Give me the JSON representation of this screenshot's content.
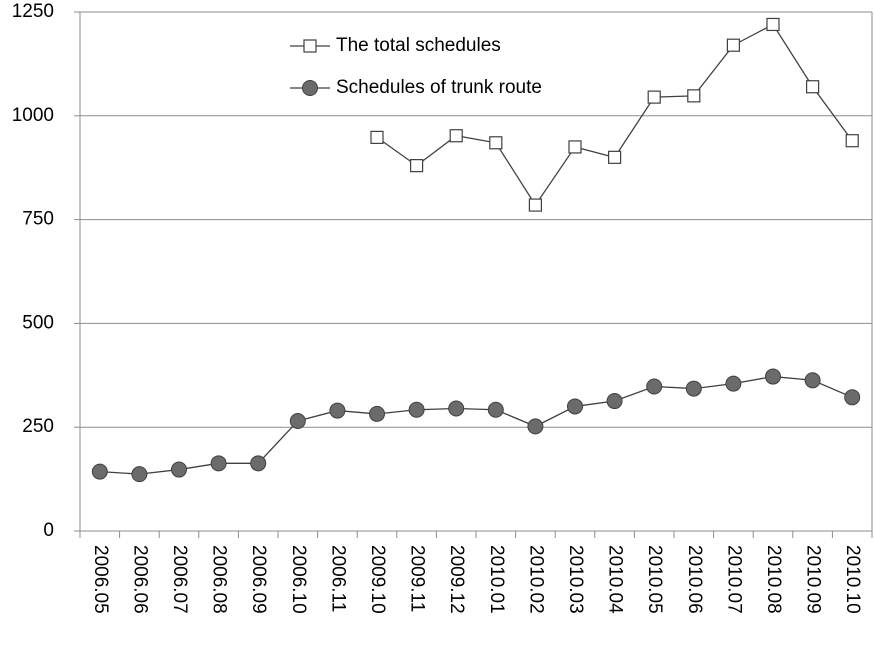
{
  "chart_data": {
    "type": "line",
    "categories": [
      "2006.05",
      "2006.06",
      "2006.07",
      "2006.08",
      "2006.09",
      "2006.10",
      "2006.11",
      "2009.10",
      "2009.11",
      "2009.12",
      "2010.01",
      "2010.02",
      "2010.03",
      "2010.04",
      "2010.05",
      "2010.06",
      "2010.07",
      "2010.08",
      "2010.09",
      "2010.10"
    ],
    "series": [
      {
        "name": "The total schedules",
        "color": "#404040",
        "marker": "square",
        "values": [
          null,
          null,
          null,
          null,
          null,
          null,
          null,
          948,
          880,
          952,
          935,
          785,
          925,
          900,
          1045,
          1048,
          1170,
          1220,
          1070,
          940
        ]
      },
      {
        "name": "Schedules of trunk route",
        "color": "#404040",
        "marker": "circle",
        "values": [
          143,
          137,
          148,
          163,
          163,
          265,
          290,
          282,
          292,
          295,
          292,
          252,
          300,
          313,
          348,
          343,
          355,
          372,
          363,
          322
        ]
      }
    ],
    "ylim": [
      0,
      1250
    ],
    "yticks": [
      0,
      250,
      500,
      750,
      1000,
      1250
    ],
    "grid": true
  }
}
